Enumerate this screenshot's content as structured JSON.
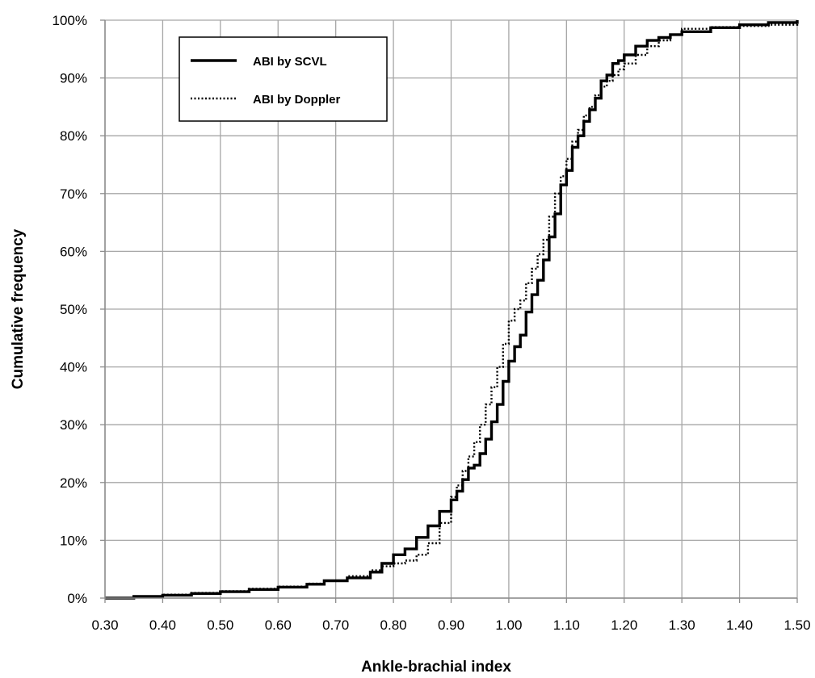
{
  "chart_data": {
    "type": "line",
    "title": "",
    "xlabel": "Ankle-brachial index",
    "ylabel": "Cumulative frequency",
    "xlim": [
      0.3,
      1.5
    ],
    "ylim": [
      0,
      100
    ],
    "x_ticks": [
      "0.30",
      "0.40",
      "0.50",
      "0.60",
      "0.70",
      "0.80",
      "0.90",
      "1.00",
      "1.10",
      "1.20",
      "1.30",
      "1.40",
      "1.50"
    ],
    "y_ticks": [
      "0%",
      "10%",
      "20%",
      "30%",
      "40%",
      "50%",
      "60%",
      "70%",
      "80%",
      "90%",
      "100%"
    ],
    "grid": true,
    "legend_position": "top-left",
    "series": [
      {
        "name": "ABI by SCVL",
        "style": "solid",
        "color": "#000000",
        "x": [
          0.3,
          0.35,
          0.4,
          0.45,
          0.5,
          0.55,
          0.6,
          0.65,
          0.68,
          0.72,
          0.76,
          0.78,
          0.8,
          0.82,
          0.84,
          0.86,
          0.88,
          0.9,
          0.91,
          0.92,
          0.93,
          0.94,
          0.95,
          0.96,
          0.97,
          0.98,
          0.99,
          1.0,
          1.01,
          1.02,
          1.03,
          1.04,
          1.05,
          1.06,
          1.07,
          1.08,
          1.09,
          1.1,
          1.11,
          1.12,
          1.13,
          1.14,
          1.15,
          1.16,
          1.17,
          1.18,
          1.19,
          1.2,
          1.22,
          1.24,
          1.26,
          1.28,
          1.3,
          1.35,
          1.4,
          1.45,
          1.5
        ],
        "y": [
          0,
          0.3,
          0.5,
          0.8,
          1.1,
          1.5,
          1.9,
          2.4,
          3.0,
          3.5,
          4.5,
          6.0,
          7.5,
          8.5,
          10.5,
          12.5,
          15.0,
          17.0,
          18.5,
          20.5,
          22.5,
          23.0,
          25.0,
          27.5,
          30.5,
          33.5,
          37.5,
          41.0,
          43.5,
          45.5,
          49.5,
          52.5,
          55.0,
          58.5,
          62.5,
          66.5,
          71.5,
          74.0,
          78.0,
          80.0,
          82.5,
          84.5,
          86.5,
          89.5,
          90.5,
          92.5,
          93.0,
          94.0,
          95.5,
          96.5,
          97.0,
          97.5,
          98.0,
          98.7,
          99.2,
          99.6,
          100
        ]
      },
      {
        "name": "ABI by Doppler",
        "style": "dotted",
        "color": "#000000",
        "x": [
          0.3,
          0.35,
          0.4,
          0.45,
          0.5,
          0.55,
          0.6,
          0.65,
          0.68,
          0.72,
          0.76,
          0.78,
          0.8,
          0.82,
          0.84,
          0.86,
          0.88,
          0.9,
          0.91,
          0.92,
          0.93,
          0.94,
          0.95,
          0.96,
          0.97,
          0.98,
          0.99,
          1.0,
          1.01,
          1.02,
          1.03,
          1.04,
          1.05,
          1.06,
          1.07,
          1.08,
          1.09,
          1.1,
          1.11,
          1.12,
          1.13,
          1.14,
          1.15,
          1.16,
          1.17,
          1.18,
          1.19,
          1.2,
          1.22,
          1.24,
          1.26,
          1.28,
          1.3,
          1.35,
          1.4,
          1.45,
          1.5
        ],
        "y": [
          0,
          0.3,
          0.6,
          0.9,
          1.2,
          1.6,
          2.0,
          2.5,
          3.0,
          3.8,
          4.8,
          5.5,
          6.0,
          6.5,
          7.5,
          9.5,
          13.0,
          17.5,
          19.5,
          22.0,
          24.5,
          27.0,
          30.0,
          33.5,
          36.5,
          40.0,
          44.0,
          48.0,
          50.0,
          51.5,
          54.5,
          57.0,
          59.5,
          62.0,
          66.0,
          70.0,
          73.0,
          76.0,
          79.0,
          81.0,
          83.5,
          85.0,
          87.0,
          88.5,
          89.5,
          90.5,
          91.5,
          92.5,
          94.0,
          95.5,
          96.5,
          97.5,
          98.5,
          98.8,
          99.0,
          99.2,
          99.5
        ]
      }
    ]
  }
}
